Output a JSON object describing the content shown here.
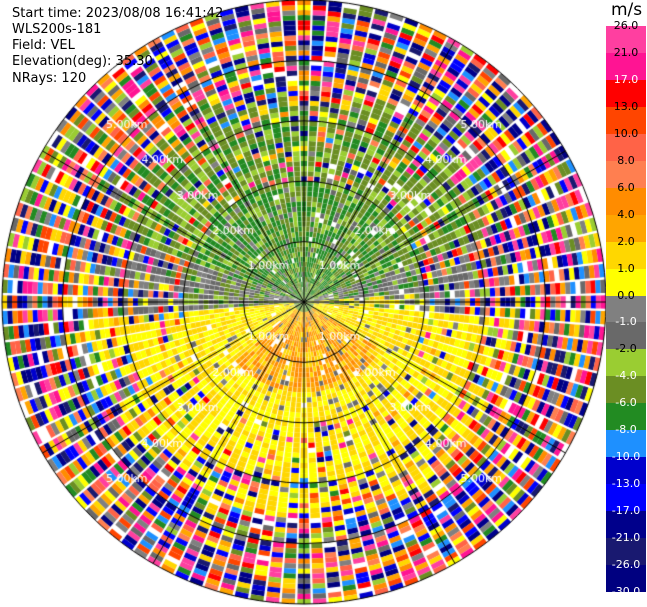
{
  "header": {
    "start_time": "Start time: 2023/08/08 16:41:42",
    "instrument": "WLS200s-181",
    "field": "Field: VEL",
    "elevation": "Elevation(deg): 35.30",
    "nrays": "NRays: 120"
  },
  "chart_data": {
    "type": "heatmap",
    "projection": "polar-ppi",
    "field": "VEL",
    "units": "m/s",
    "nrays": 120,
    "range_rings_km": [
      1.0,
      2.0,
      3.0,
      4.0,
      5.0
    ],
    "range_ring_labels": [
      "1.00km",
      "2.00km",
      "3.00km",
      "4.00km",
      "5.00km"
    ],
    "max_range_km": 5.0,
    "colorbar": {
      "title": "m/s",
      "ticks": [
        "26.0",
        "21.0",
        "17.0",
        "13.0",
        "10.0",
        "8.0",
        "6.0",
        "4.0",
        "2.0",
        "1.0",
        "0.0",
        "-1.0",
        "-2.0",
        "-4.0",
        "-6.0",
        "-8.0",
        "-10.0",
        "-13.0",
        "-17.0",
        "-21.0",
        "-26.0",
        "-30.0"
      ],
      "colors": [
        "#ff3fa0",
        "#ff1493",
        "#ff0000",
        "#ff4500",
        "#ff6347",
        "#ff7f50",
        "#ff8c00",
        "#ffa500",
        "#ffd700",
        "#ffff00",
        "#808080",
        "#696969",
        "#9acd32",
        "#6b8e23",
        "#228b22",
        "#1e90ff",
        "#0000cd",
        "#0000ff",
        "#00008b",
        "#191970",
        "#000080"
      ]
    }
  }
}
